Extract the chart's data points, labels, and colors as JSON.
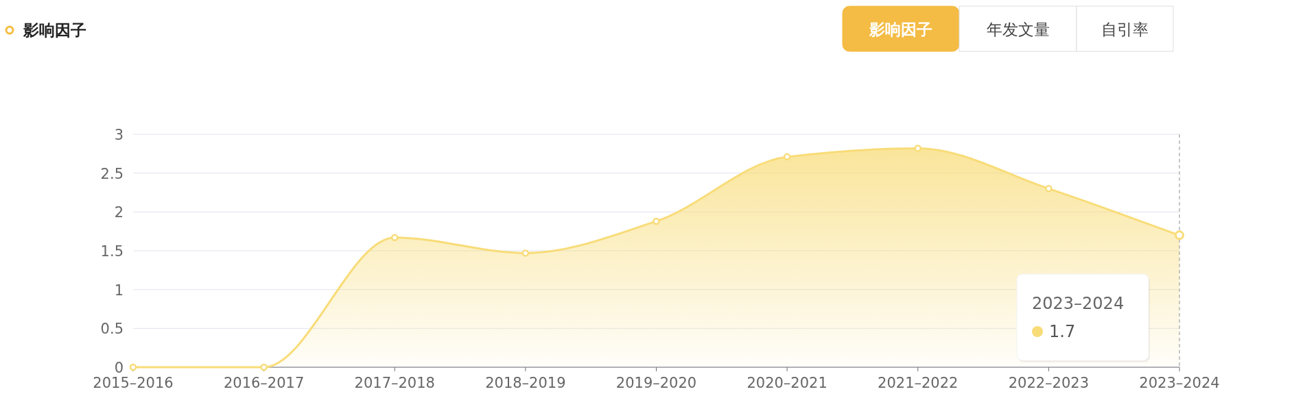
{
  "chart_data": {
    "type": "area",
    "title": "影响因子",
    "categories": [
      "2015–2016",
      "2016–2017",
      "2017–2018",
      "2018–2019",
      "2019–2020",
      "2020–2021",
      "2021–2022",
      "2022–2023",
      "2023–2024"
    ],
    "series": [
      {
        "color": "#f8dc78",
        "values": [
          0,
          0,
          1.67,
          1.47,
          1.88,
          2.71,
          2.82,
          2.3,
          1.7
        ]
      }
    ],
    "ylim": [
      0,
      3
    ],
    "yticks": [
      0,
      0.5,
      1,
      1.5,
      2,
      2.5,
      3
    ],
    "grid": "y",
    "marker": "circle",
    "ref_lines": [
      {
        "axis": "x",
        "value": "2023–2024",
        "color": "#aaaaaa",
        "line_style": "dashed"
      }
    ],
    "annotations": [
      "影响因子",
      "年发文量",
      "自引率",
      "2023–2024",
      "1.7"
    ]
  }
}
